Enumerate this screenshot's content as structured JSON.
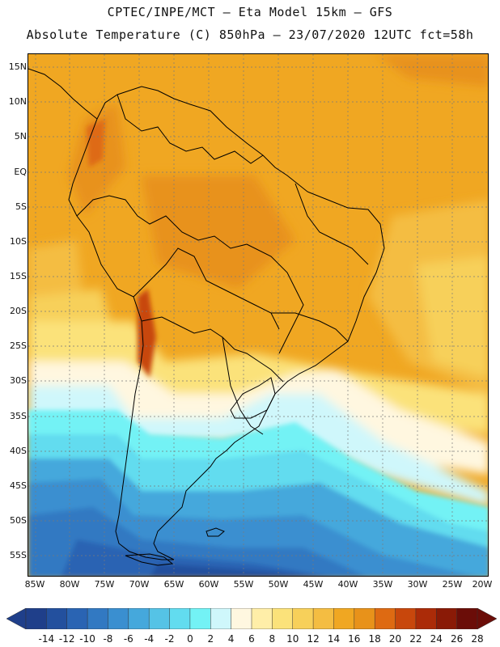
{
  "header": {
    "line1": "CPTEC/INPE/MCT –  Eta Model 15km – GFS",
    "line2": "Absolute Temperature (C) 850hPa – 23/07/2020 12UTC fct=58h"
  },
  "lat_labels": [
    "15N",
    "10N",
    "5N",
    "EQ",
    "5S",
    "10S",
    "15S",
    "20S",
    "25S",
    "30S",
    "35S",
    "40S",
    "45S",
    "50S",
    "55S"
  ],
  "lon_labels": [
    "85W",
    "80W",
    "75W",
    "70W",
    "65W",
    "60W",
    "55W",
    "50W",
    "45W",
    "40W",
    "35W",
    "30W",
    "25W",
    "20W"
  ],
  "colorbar": {
    "labels": [
      "-14",
      "-12",
      "-10",
      "-8",
      "-6",
      "-4",
      "-2",
      "0",
      "2",
      "4",
      "6",
      "8",
      "10",
      "12",
      "14",
      "16",
      "18",
      "20",
      "22",
      "24",
      "26",
      "28"
    ],
    "colors": [
      "#1f3f8a",
      "#23509e",
      "#2a64b3",
      "#3279c2",
      "#3a8fd0",
      "#45a8dc",
      "#55c3e6",
      "#62dcef",
      "#73f2f5",
      "#cff7fb",
      "#fff7e0",
      "#ffeea8",
      "#fbe27a",
      "#f7d05a",
      "#f4bd42",
      "#f0a722",
      "#e8921a",
      "#de6a12",
      "#c8470c",
      "#ab2b08",
      "#8a1a06",
      "#6b0d08"
    ]
  }
}
